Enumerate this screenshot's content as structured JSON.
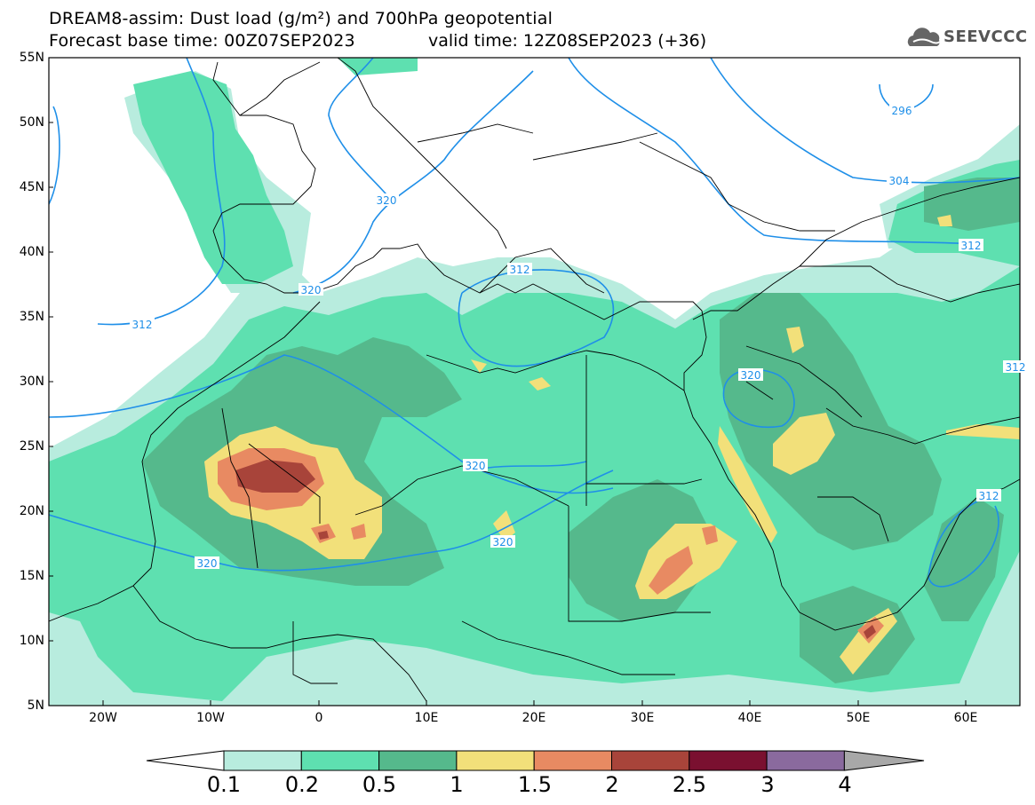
{
  "header": {
    "title_line1": "DREAM8-assim: Dust load (g/m²) and 700hPa geopotential",
    "title_line2": "Forecast base time: 00Z07SEP2023",
    "title_line2b": "valid time: 12Z08SEP2023 (+36)"
  },
  "logo": {
    "text": "SEEVCCC",
    "icon": "cloud-icon"
  },
  "axes": {
    "lat_labels": [
      "55N",
      "50N",
      "45N",
      "40N",
      "35N",
      "30N",
      "25N",
      "20N",
      "15N",
      "10N",
      "5N"
    ],
    "lon_labels": [
      "20W",
      "10W",
      "0",
      "10E",
      "20E",
      "30E",
      "40E",
      "50E",
      "60E"
    ],
    "lon_range": [
      -25,
      65
    ],
    "lat_range": [
      5,
      55
    ]
  },
  "contour_labels": [
    "312",
    "320",
    "320",
    "312",
    "320",
    "320",
    "320",
    "312",
    "304",
    "296",
    "312",
    "320",
    "312"
  ],
  "colorbar": {
    "labels": [
      "0.1",
      "0.2",
      "0.5",
      "1",
      "1.5",
      "2",
      "2.5",
      "3",
      "4"
    ],
    "colors": [
      "#ffffff",
      "#b8ecde",
      "#5ee0b0",
      "#55b98c",
      "#f2e07a",
      "#e88a62",
      "#a8443a",
      "#7a1030",
      "#8a6a9e",
      "#a8a8a8"
    ]
  },
  "colors": {
    "contour_line": "#1f8fe8",
    "coastline": "#000000"
  }
}
